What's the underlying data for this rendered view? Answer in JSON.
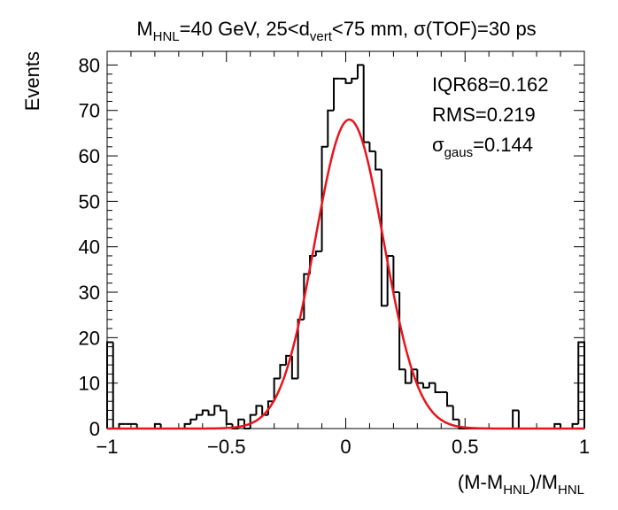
{
  "chart_data": {
    "type": "histogram",
    "title_parts": [
      {
        "text": "M",
        "sub": false
      },
      {
        "text": "HNL",
        "sub": true
      },
      {
        "text": "=40 GeV, 25<d",
        "sub": false
      },
      {
        "text": "vert",
        "sub": true
      },
      {
        "text": "<75 mm, σ(TOF)=30 ps",
        "sub": false
      }
    ],
    "ylabel": "Events",
    "xlabel_parts": [
      {
        "text": "(M-M",
        "sub": false
      },
      {
        "text": "HNL",
        "sub": true
      },
      {
        "text": ")/M",
        "sub": false
      },
      {
        "text": "HNL",
        "sub": true
      }
    ],
    "stats": [
      [
        {
          "text": "IQR68=0.162",
          "sub": false
        }
      ],
      [
        {
          "text": "RMS=0.219",
          "sub": false
        }
      ],
      [
        {
          "text": "σ",
          "sub": false
        },
        {
          "text": "gaus",
          "sub": true
        },
        {
          "text": "=0.144",
          "sub": false
        }
      ]
    ],
    "bins": [
      -1,
      -0.975,
      -0.95,
      -0.925,
      -0.9,
      -0.875,
      -0.85,
      -0.825,
      -0.8,
      -0.775,
      -0.75,
      -0.725,
      -0.7,
      -0.675,
      -0.65,
      -0.625,
      -0.6,
      -0.575,
      -0.55,
      -0.525,
      -0.5,
      -0.475,
      -0.45,
      -0.425,
      -0.4,
      -0.375,
      -0.35,
      -0.325,
      -0.3,
      -0.275,
      -0.25,
      -0.225,
      -0.2,
      -0.175,
      -0.15,
      -0.125,
      -0.1,
      -0.075,
      -0.05,
      -0.025,
      0,
      0.025,
      0.05,
      0.075,
      0.1,
      0.125,
      0.15,
      0.175,
      0.2,
      0.225,
      0.25,
      0.275,
      0.3,
      0.325,
      0.35,
      0.375,
      0.4,
      0.425,
      0.45,
      0.475,
      0.5,
      0.525,
      0.55,
      0.575,
      0.6,
      0.625,
      0.65,
      0.675,
      0.7,
      0.725,
      0.75,
      0.775,
      0.8,
      0.825,
      0.85,
      0.875,
      0.9,
      0.925,
      0.95,
      0.975,
      1
    ],
    "values": [
      19,
      0,
      1,
      1,
      1,
      0,
      0,
      0,
      1,
      0,
      0,
      0,
      0,
      1,
      2,
      3,
      4,
      3,
      5,
      4,
      1,
      0,
      2,
      0,
      3,
      5,
      3,
      6,
      11,
      14,
      16,
      11,
      24,
      34,
      38,
      39,
      62,
      70,
      77,
      77,
      76,
      77,
      80,
      63,
      61,
      57,
      27,
      38,
      30,
      13,
      10,
      13,
      10,
      9,
      10,
      8,
      8,
      5,
      2,
      0,
      0,
      0,
      0,
      0,
      0,
      0,
      0,
      0,
      4,
      0,
      0,
      0,
      0,
      0,
      0,
      1,
      0,
      0,
      1,
      19
    ],
    "color": "#000000",
    "fit": {
      "amplitude": 68,
      "mean": 0.015,
      "sigma": 0.144,
      "color": "#e8141c"
    },
    "xlim": [
      -1,
      1
    ],
    "ylim": [
      0,
      83
    ],
    "xticks": [
      {
        "value": -1,
        "label": "−1"
      },
      {
        "value": -0.5,
        "label": "−0.5"
      },
      0,
      0.5,
      1
    ],
    "yticks": [
      0,
      10,
      20,
      30,
      40,
      50,
      60,
      70,
      80
    ]
  }
}
